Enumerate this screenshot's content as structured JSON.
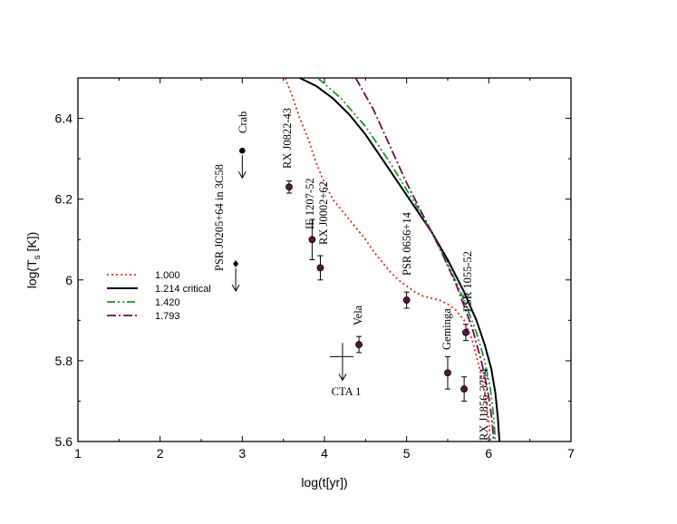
{
  "chart_data": {
    "type": "scatter",
    "xlabel": "log(t[yr])",
    "ylabel_main": "log(T",
    "ylabel_sub": "s",
    "ylabel_tail": " [K])",
    "xlim": [
      1,
      7
    ],
    "ylim": [
      5.6,
      6.5
    ],
    "xticks": [
      {
        "v": 1,
        "label": "1"
      },
      {
        "v": 2,
        "label": "2"
      },
      {
        "v": 3,
        "label": "3"
      },
      {
        "v": 4,
        "label": "4"
      },
      {
        "v": 5,
        "label": "5"
      },
      {
        "v": 6,
        "label": "6"
      },
      {
        "v": 7,
        "label": "7"
      }
    ],
    "yticks": [
      {
        "v": 5.6,
        "label": "5.6"
      },
      {
        "v": 5.8,
        "label": "5.8"
      },
      {
        "v": 6.0,
        "label": "6"
      },
      {
        "v": 6.2,
        "label": "6.2"
      },
      {
        "v": 6.4,
        "label": "6.4"
      }
    ],
    "grid": false,
    "legend_position": "left-middle",
    "series": [
      {
        "name": "1.000",
        "color": "#e8281e",
        "dash": "2,3",
        "points": [
          [
            3.52,
            6.5
          ],
          [
            3.6,
            6.46
          ],
          [
            3.7,
            6.4
          ],
          [
            3.8,
            6.35
          ],
          [
            3.9,
            6.29
          ],
          [
            4.0,
            6.24
          ],
          [
            4.1,
            6.2
          ],
          [
            4.2,
            6.175
          ],
          [
            4.3,
            6.15
          ],
          [
            4.4,
            6.125
          ],
          [
            4.5,
            6.1
          ],
          [
            4.6,
            6.07
          ],
          [
            4.7,
            6.045
          ],
          [
            4.8,
            6.02
          ],
          [
            4.9,
            6.0
          ],
          [
            5.0,
            5.985
          ],
          [
            5.1,
            5.97
          ],
          [
            5.2,
            5.96
          ],
          [
            5.3,
            5.955
          ],
          [
            5.4,
            5.95
          ],
          [
            5.5,
            5.94
          ],
          [
            5.6,
            5.925
          ],
          [
            5.7,
            5.9
          ],
          [
            5.8,
            5.85
          ],
          [
            5.9,
            5.77
          ],
          [
            5.95,
            5.72
          ],
          [
            6.0,
            5.65
          ],
          [
            6.02,
            5.6
          ]
        ]
      },
      {
        "name": "1.214 critical",
        "color": "#000000",
        "dash": "",
        "points": [
          [
            3.7,
            6.5
          ],
          [
            3.9,
            6.48
          ],
          [
            4.1,
            6.45
          ],
          [
            4.3,
            6.41
          ],
          [
            4.5,
            6.36
          ],
          [
            4.7,
            6.3
          ],
          [
            4.9,
            6.24
          ],
          [
            5.1,
            6.18
          ],
          [
            5.3,
            6.12
          ],
          [
            5.5,
            6.05
          ],
          [
            5.7,
            5.97
          ],
          [
            5.85,
            5.9
          ],
          [
            5.95,
            5.84
          ],
          [
            6.03,
            5.78
          ],
          [
            6.08,
            5.72
          ],
          [
            6.11,
            5.66
          ],
          [
            6.13,
            5.6
          ]
        ]
      },
      {
        "name": "1.420",
        "color": "#189a28",
        "dash": "9,3,2,3,2,3",
        "points": [
          [
            3.92,
            6.5
          ],
          [
            4.2,
            6.45
          ],
          [
            4.5,
            6.38
          ],
          [
            4.8,
            6.29
          ],
          [
            5.1,
            6.19
          ],
          [
            5.3,
            6.12
          ],
          [
            5.5,
            6.04
          ],
          [
            5.7,
            5.95
          ],
          [
            5.85,
            5.87
          ],
          [
            5.95,
            5.8
          ],
          [
            6.02,
            5.73
          ],
          [
            6.06,
            5.66
          ],
          [
            6.08,
            5.6
          ]
        ]
      },
      {
        "name": "1.793",
        "color": "#6e0a52",
        "dash": "10,3,2,3",
        "points": [
          [
            4.38,
            6.5
          ],
          [
            4.6,
            6.42
          ],
          [
            4.8,
            6.33
          ],
          [
            5.0,
            6.24
          ],
          [
            5.2,
            6.16
          ],
          [
            5.4,
            6.08
          ],
          [
            5.6,
            5.99
          ],
          [
            5.8,
            5.88
          ],
          [
            5.92,
            5.79
          ],
          [
            6.0,
            5.71
          ],
          [
            6.04,
            5.65
          ],
          [
            6.06,
            5.6
          ]
        ]
      }
    ],
    "legend": [
      {
        "label": "1.000",
        "color": "#e8281e",
        "dash": "2,3"
      },
      {
        "label": "1.214 critical",
        "color": "#000000",
        "dash": ""
      },
      {
        "label": "1.420",
        "color": "#189a28",
        "dash": "9,3,2,3,2,3"
      },
      {
        "label": "1.793",
        "color": "#6e0a52",
        "dash": "10,3,2,3"
      }
    ],
    "pulsars": [
      {
        "label": "Crab",
        "x": 3.0,
        "y": 6.32,
        "yerr": 0,
        "kind": "upper-limit",
        "marker": "circle-black"
      },
      {
        "label": "PSR J0205+64 in 3C58",
        "x": 2.92,
        "y": 6.04,
        "yerr": 0,
        "kind": "upper-limit",
        "marker": "diamond"
      },
      {
        "label": "RX J0822-43",
        "x": 3.57,
        "y": 6.23,
        "yerr": 0.015,
        "kind": "point",
        "marker": "circle"
      },
      {
        "label": "IE 1207-52",
        "x": 3.85,
        "y": 6.1,
        "yerr": 0.05,
        "kind": "point",
        "marker": "circle"
      },
      {
        "label": "RX J0002+62",
        "x": 3.95,
        "y": 6.03,
        "yerr": 0.03,
        "kind": "point",
        "marker": "circle"
      },
      {
        "label": "Vela",
        "x": 4.42,
        "y": 5.84,
        "yerr": 0.02,
        "kind": "point",
        "marker": "circle"
      },
      {
        "label": "PSR 0656+14",
        "x": 5.0,
        "y": 5.95,
        "yerr": 0.02,
        "kind": "point",
        "marker": "circle"
      },
      {
        "label": "Geminga",
        "x": 5.5,
        "y": 5.77,
        "yerr": 0.04,
        "kind": "point",
        "marker": "circle"
      },
      {
        "label": "PSR 1055-52",
        "x": 5.72,
        "y": 5.87,
        "yerr": 0.02,
        "kind": "point",
        "marker": "circle"
      },
      {
        "label": "RX J1856-3754",
        "x": 5.7,
        "y": 5.73,
        "yerr": 0.03,
        "kind": "point",
        "marker": "circle"
      },
      {
        "label": "CTA 1",
        "x": 4.22,
        "y": 5.81,
        "yerr": 0,
        "kind": "cross",
        "marker": "cross"
      }
    ]
  }
}
